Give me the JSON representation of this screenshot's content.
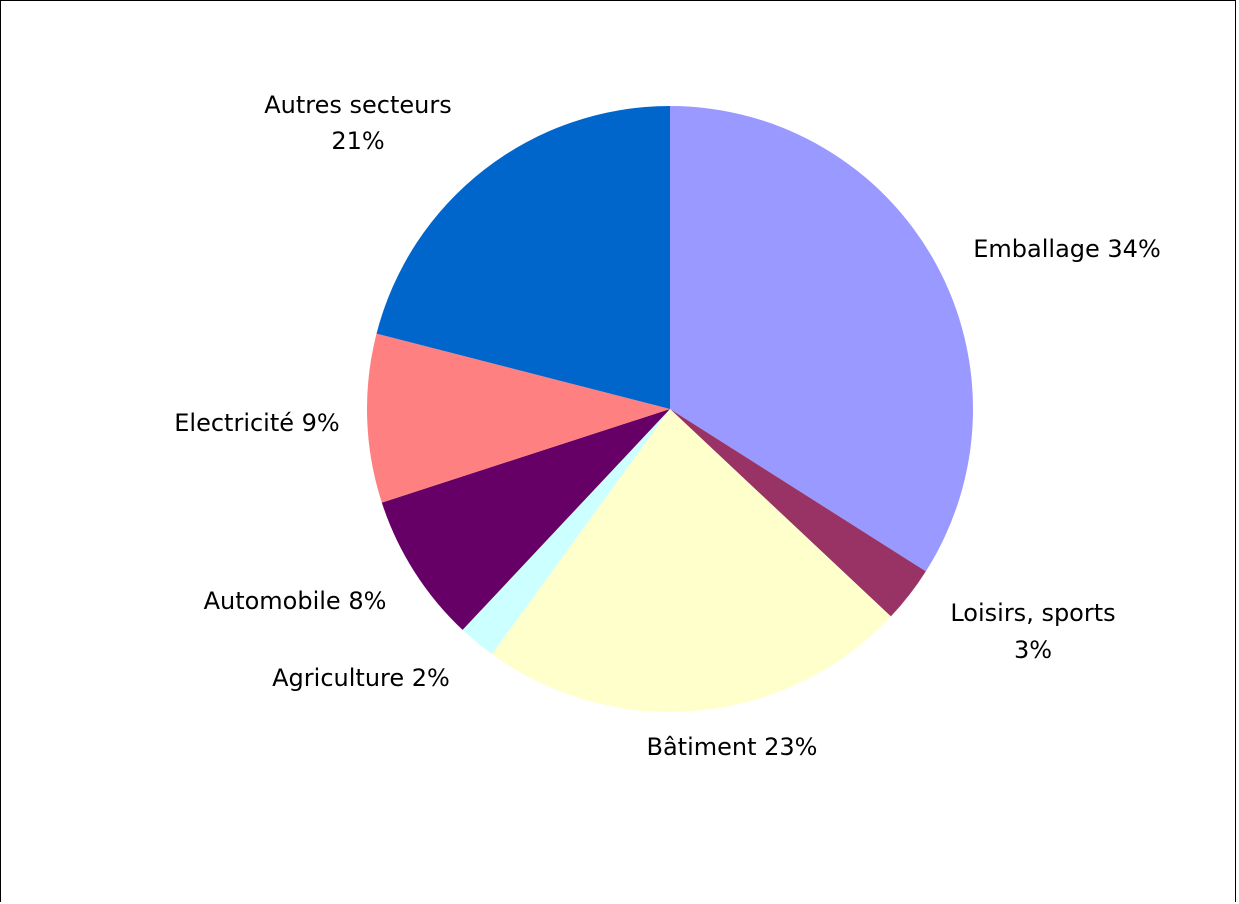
{
  "chart_data": {
    "type": "pie",
    "title": "",
    "start_angle_deg": 0,
    "direction": "clockwise",
    "legend": "none",
    "slices": [
      {
        "name": "Emballage",
        "value": 34,
        "pct_label": "34%",
        "label_lines": [
          "Emballage 34%"
        ],
        "color": "#9999FF"
      },
      {
        "name": "Loisirs, sports",
        "value": 3,
        "pct_label": "3%",
        "label_lines": [
          "Loisirs, sports",
          "3%"
        ],
        "color": "#993366"
      },
      {
        "name": "Bâtiment",
        "value": 23,
        "pct_label": "23%",
        "label_lines": [
          "Bâtiment 23%"
        ],
        "color": "#FFFFCC"
      },
      {
        "name": "Agriculture",
        "value": 2,
        "pct_label": "2%",
        "label_lines": [
          "Agriculture 2%"
        ],
        "color": "#CCFFFF"
      },
      {
        "name": "Automobile",
        "value": 8,
        "pct_label": "8%",
        "label_lines": [
          "Automobile 8%"
        ],
        "color": "#660066"
      },
      {
        "name": "Electricité",
        "value": 9,
        "pct_label": "9%",
        "label_lines": [
          "Electricité 9%"
        ],
        "color": "#FF8080"
      },
      {
        "name": "Autres secteurs",
        "value": 21,
        "pct_label": "21%",
        "label_lines": [
          "Autres secteurs",
          "21%"
        ],
        "color": "#0066CC"
      }
    ]
  }
}
